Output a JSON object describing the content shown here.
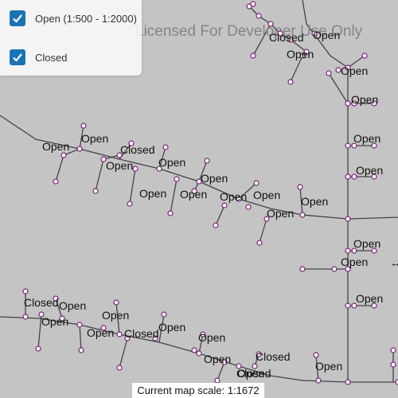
{
  "license_text": "Licensed For Developer Use Only",
  "legend": {
    "items": [
      {
        "label": "Open (1:500 - 1:2000)",
        "checked": true
      },
      {
        "label": "Closed",
        "checked": true
      }
    ]
  },
  "map_labels": [
    {
      "text": "Open"
    },
    {
      "text": "Open"
    },
    {
      "text": "Closed"
    },
    {
      "text": "Open"
    },
    {
      "text": "Open"
    },
    {
      "text": "Open"
    },
    {
      "text": "Open"
    },
    {
      "text": "Open"
    },
    {
      "text": "Open"
    },
    {
      "text": "Open"
    },
    {
      "text": "Closed"
    },
    {
      "text": "Open"
    },
    {
      "text": "Open"
    },
    {
      "text": "Open"
    },
    {
      "text": "Open"
    },
    {
      "text": "Open"
    },
    {
      "text": "Open"
    },
    {
      "text": "Open"
    },
    {
      "text": "Open"
    },
    {
      "text": "Open"
    },
    {
      "text": "Open"
    },
    {
      "text": "Open"
    },
    {
      "text": "Open"
    },
    {
      "text": "Closed"
    },
    {
      "text": "Closed"
    },
    {
      "text": "Open"
    },
    {
      "text": "Open"
    },
    {
      "text": "Open"
    },
    {
      "text": "Open"
    },
    {
      "text": "Open"
    },
    {
      "text": "Open"
    },
    {
      "text": "Open"
    },
    {
      "text": "Closed"
    },
    {
      "text": "Closed"
    },
    {
      "text": "Open"
    }
  ],
  "scale_text": "Current map scale: 1:1672",
  "colors": {
    "background": "#c4c4c4",
    "line": "#444444",
    "node_fill": "#ffffff",
    "node_stroke": "#7a1f7a",
    "checkbox": "#1a73b5"
  }
}
